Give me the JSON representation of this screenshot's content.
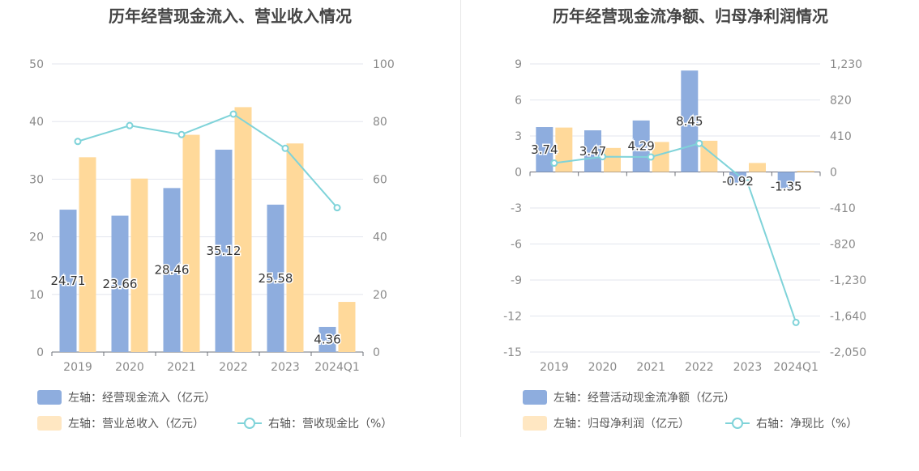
{
  "colors": {
    "blue": "#8eadde",
    "orange": "#ffd99a",
    "line": "#7fd3d9",
    "grid": "#e3e6ee",
    "axisText": "#8a8a8a",
    "labelText": "#333333"
  },
  "chart_data": [
    {
      "type": "bar",
      "title": "历年经营现金流入、营业收入情况",
      "categories": [
        "2019",
        "2020",
        "2021",
        "2022",
        "2023",
        "2024Q1"
      ],
      "yleft": {
        "ticks": [
          "0",
          "10",
          "20",
          "30",
          "40",
          "50"
        ],
        "min": 0,
        "max": 50
      },
      "yright": {
        "ticks": [
          "0",
          "20",
          "40",
          "60",
          "80",
          "100"
        ],
        "min": 0,
        "max": 100
      },
      "series": [
        {
          "name": "左轴：经营现金流入（亿元）",
          "axis": "left",
          "kind": "bar",
          "color": "#8eadde",
          "values": [
            24.71,
            23.66,
            28.46,
            35.12,
            25.58,
            4.36
          ],
          "labels": [
            "24.71",
            "23.66",
            "28.46",
            "35.12",
            "25.58",
            "4.36"
          ]
        },
        {
          "name": "左轴：营业总收入（亿元）",
          "axis": "left",
          "kind": "bar",
          "color": "#ffd99a",
          "values": [
            33.8,
            30.1,
            37.7,
            42.5,
            36.2,
            8.7
          ]
        },
        {
          "name": "右轴：营收现金比（%）",
          "axis": "right",
          "kind": "line",
          "color": "#7fd3d9",
          "values": [
            73.1,
            78.6,
            75.5,
            82.6,
            70.7,
            50.1
          ]
        }
      ]
    },
    {
      "type": "bar",
      "title": "历年经营现金流净额、归母净利润情况",
      "categories": [
        "2019",
        "2020",
        "2021",
        "2022",
        "2023",
        "2024Q1"
      ],
      "yleft": {
        "ticks": [
          "-15",
          "-12",
          "-9",
          "-6",
          "-3",
          "0",
          "3",
          "6",
          "9"
        ],
        "min": -15,
        "max": 9
      },
      "yright": {
        "ticks": [
          "-2,050",
          "-1,640",
          "-1,230",
          "-820",
          "-410",
          "0",
          "410",
          "820",
          "1,230"
        ],
        "min": -2050,
        "max": 1230
      },
      "series": [
        {
          "name": "左轴：经营活动现金流净额（亿元）",
          "axis": "left",
          "kind": "bar",
          "color": "#8eadde",
          "values": [
            3.74,
            3.47,
            4.29,
            8.45,
            -0.92,
            -1.35
          ],
          "labels": [
            "3.74",
            "3.47",
            "4.29",
            "8.45",
            "-0.92",
            "-1.35"
          ]
        },
        {
          "name": "左轴：归母净利润（亿元）",
          "axis": "left",
          "kind": "bar",
          "color": "#ffd99a",
          "values": [
            3.7,
            2.0,
            2.5,
            2.6,
            0.75,
            0.1
          ]
        },
        {
          "name": "右轴：净现比（%）",
          "axis": "right",
          "kind": "line",
          "color": "#7fd3d9",
          "values": [
            101,
            174,
            171,
            325,
            -123,
            -1713
          ]
        }
      ]
    }
  ]
}
